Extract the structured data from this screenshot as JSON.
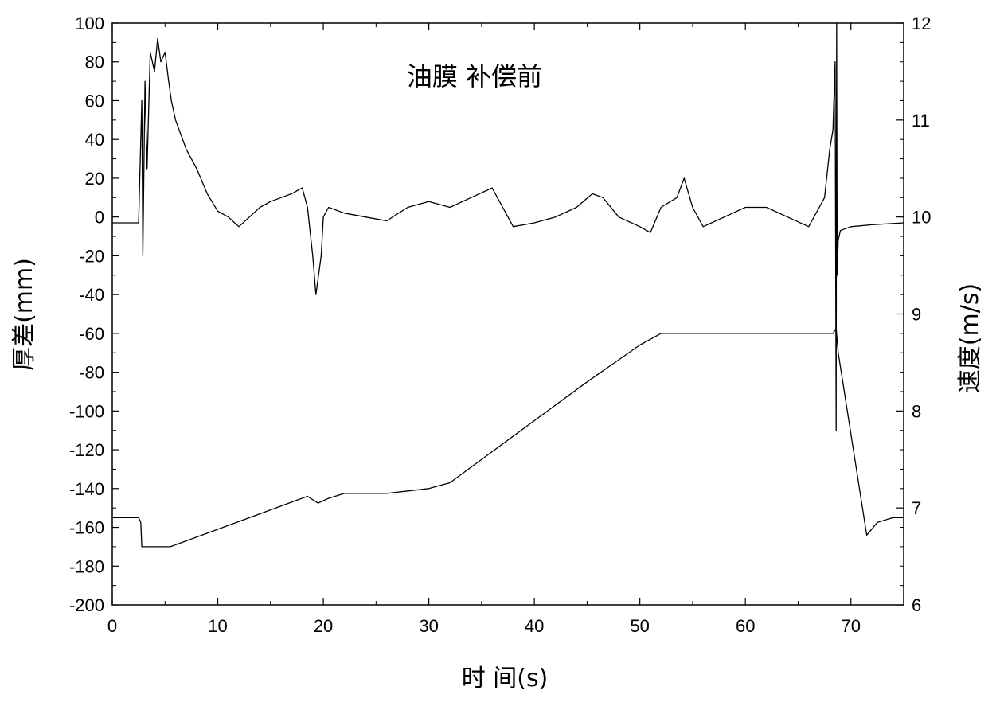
{
  "chart_data": {
    "type": "line",
    "annotation": "油膜 补偿前",
    "xlabel": "时 间(s)",
    "ylabel_left": "厚差(mm)",
    "ylabel_right": "速度(m/s)",
    "xlim": [
      0,
      75
    ],
    "ylim_left": [
      -200,
      100
    ],
    "ylim_right": [
      6,
      12
    ],
    "x_ticks": [
      0,
      10,
      20,
      30,
      40,
      50,
      60,
      70
    ],
    "y_left_ticks": [
      100,
      80,
      60,
      40,
      20,
      0,
      -20,
      -40,
      -60,
      -80,
      -100,
      -120,
      -140,
      -160,
      -180,
      -200
    ],
    "y_right_ticks": [
      12,
      11,
      10,
      9,
      8,
      7,
      6
    ],
    "grid": false,
    "line_color": "#000000",
    "series": [
      {
        "axis": "left",
        "x": [
          0,
          2.5,
          2.8,
          2.9,
          3.1,
          3.3,
          3.6,
          4,
          4.3,
          4.6,
          5,
          5.3,
          5.6,
          6,
          7,
          8,
          9,
          10,
          11,
          12,
          13,
          14,
          15,
          16,
          17,
          18,
          18.5,
          19,
          19.3,
          19.8,
          20,
          20.5,
          22,
          24,
          26,
          28,
          30,
          32,
          34,
          36,
          37,
          38,
          40,
          42,
          44,
          45.5,
          46.5,
          48,
          50,
          51,
          52,
          53.5,
          54.2,
          55,
          56,
          58,
          60,
          62,
          64,
          66,
          67,
          67.5,
          68,
          68.3,
          68.5,
          68.6,
          68.65,
          68.7,
          68.8,
          69,
          70,
          72,
          75
        ],
        "y": [
          -3,
          -3,
          60,
          -20,
          70,
          25,
          85,
          75,
          92,
          80,
          85,
          72,
          60,
          50,
          35,
          25,
          12,
          3,
          0,
          -5,
          0,
          5,
          8,
          10,
          12,
          15,
          5,
          -20,
          -40,
          -20,
          0,
          5,
          2,
          0,
          -2,
          5,
          8,
          5,
          10,
          15,
          5,
          -5,
          -3,
          0,
          5,
          12,
          10,
          0,
          -5,
          -8,
          5,
          10,
          20,
          5,
          -5,
          0,
          5,
          5,
          0,
          -5,
          5,
          10,
          35,
          45,
          80,
          -110,
          100,
          -30,
          -12,
          -7,
          -5,
          -4,
          -3
        ]
      },
      {
        "axis": "right",
        "x": [
          0,
          2.5,
          2.7,
          2.8,
          3,
          5.5,
          10,
          15,
          17.5,
          18.5,
          19.5,
          20.5,
          22,
          26,
          30,
          32,
          40,
          45,
          50,
          52,
          60,
          68,
          68.3,
          68.6,
          68.8,
          71.5,
          72.5,
          74,
          75
        ],
        "y": [
          6.9,
          6.9,
          6.85,
          6.6,
          6.6,
          6.6,
          6.78,
          6.98,
          7.08,
          7.12,
          7.05,
          7.1,
          7.15,
          7.15,
          7.2,
          7.26,
          7.9,
          8.3,
          8.68,
          8.8,
          8.8,
          8.8,
          8.8,
          8.85,
          8.6,
          6.72,
          6.85,
          6.9,
          6.9
        ]
      }
    ]
  }
}
